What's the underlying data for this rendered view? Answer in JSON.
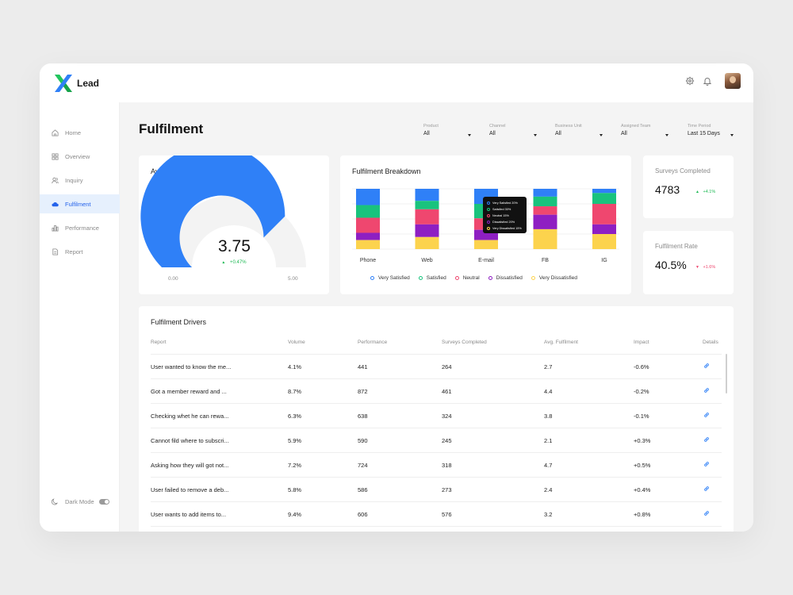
{
  "app": {
    "name": "Lead"
  },
  "sidebar": {
    "items": [
      {
        "label": "Home",
        "icon": "home-icon"
      },
      {
        "label": "Overview",
        "icon": "grid-icon"
      },
      {
        "label": "Inquiry",
        "icon": "users-icon"
      },
      {
        "label": "Fulfilment",
        "icon": "cloud-icon",
        "active": true
      },
      {
        "label": "Performance",
        "icon": "bar-chart-icon"
      },
      {
        "label": "Report",
        "icon": "document-icon"
      }
    ],
    "dark_mode_label": "Dark Mode"
  },
  "header": {
    "title": "Fulfilment"
  },
  "filters": [
    {
      "label": "Product",
      "value": "All"
    },
    {
      "label": "Channel",
      "value": "All"
    },
    {
      "label": "Business Unit",
      "value": "All"
    },
    {
      "label": "Assigned Team",
      "value": "All"
    },
    {
      "label": "Time Period",
      "value": "Last 15 Days"
    }
  ],
  "avg_fulfilment": {
    "title": "Avg. Fulfilment",
    "value": "3.75",
    "change": "+0.47%",
    "min": "0.00",
    "max": "5.00",
    "fill_fraction": 0.75,
    "colors": {
      "fill": "#2f80f7",
      "track": "#f3f3f3"
    }
  },
  "breakdown": {
    "title": "Fulfilment Breakdown",
    "tooltip": [
      "Very Satisfied 20%",
      "Satisfied 30%",
      "Neutral 15%",
      "Dissatisfied 20%",
      "Very Dissatisfied 15%"
    ]
  },
  "chart_data": {
    "type": "bar",
    "stacked": true,
    "normalized": true,
    "categories": [
      "Phone",
      "Web",
      "E-mail",
      "FB",
      "IG"
    ],
    "series": [
      {
        "name": "Very Satisfied",
        "color": "#2f80f7",
        "values": [
          27,
          20,
          25,
          13,
          7
        ]
      },
      {
        "name": "Satisfied",
        "color": "#19c37d",
        "values": [
          21,
          14,
          24,
          16,
          18
        ]
      },
      {
        "name": "Neutral",
        "color": "#ef476f",
        "values": [
          25,
          25,
          19,
          14,
          34
        ]
      },
      {
        "name": "Dissatisfied",
        "color": "#8e1fc2",
        "values": [
          12,
          21,
          17,
          24,
          16
        ]
      },
      {
        "name": "Very Dissatisfied",
        "color": "#fcd34d",
        "values": [
          15,
          20,
          15,
          33,
          25
        ]
      }
    ],
    "ylim": [
      0,
      100
    ],
    "grid": true,
    "legend": "bottom"
  },
  "stats": [
    {
      "label": "Surveys Completed",
      "value": "4783",
      "change": "+4.1%",
      "direction": "up",
      "color": "#1db954"
    },
    {
      "label": "Fulfilment Rate",
      "value": "40.5%",
      "change": "+1.6%",
      "direction": "down",
      "color": "#ef476f"
    }
  ],
  "drivers": {
    "title": "Fulfilment Drivers",
    "columns": [
      "Report",
      "Volume",
      "Performance",
      "Surveys Completed",
      "Avg. Fulfilment",
      "Impact",
      "Details"
    ],
    "rows": [
      [
        "User wanted to know the me...",
        "4.1%",
        "441",
        "264",
        "2.7",
        "-0.6%"
      ],
      [
        "Got a member reward and ...",
        "8.7%",
        "872",
        "461",
        "4.4",
        "-0.2%"
      ],
      [
        "Checking whet he can rewa...",
        "6.3%",
        "638",
        "324",
        "3.8",
        "-0.1%"
      ],
      [
        "Cannot fild where to subscri...",
        "5.9%",
        "590",
        "245",
        "2.1",
        "+0.3%"
      ],
      [
        "Asking how they will got not...",
        "7.2%",
        "724",
        "318",
        "4.7",
        "+0.5%"
      ],
      [
        "User failed to remove a deb...",
        "5.8%",
        "586",
        "273",
        "2.4",
        "+0.4%"
      ],
      [
        "User wants to add items to...",
        "9.4%",
        "606",
        "576",
        "3.2",
        "+0.8%"
      ]
    ],
    "details_icon": "link-icon",
    "link_color": "#2f80f7"
  }
}
